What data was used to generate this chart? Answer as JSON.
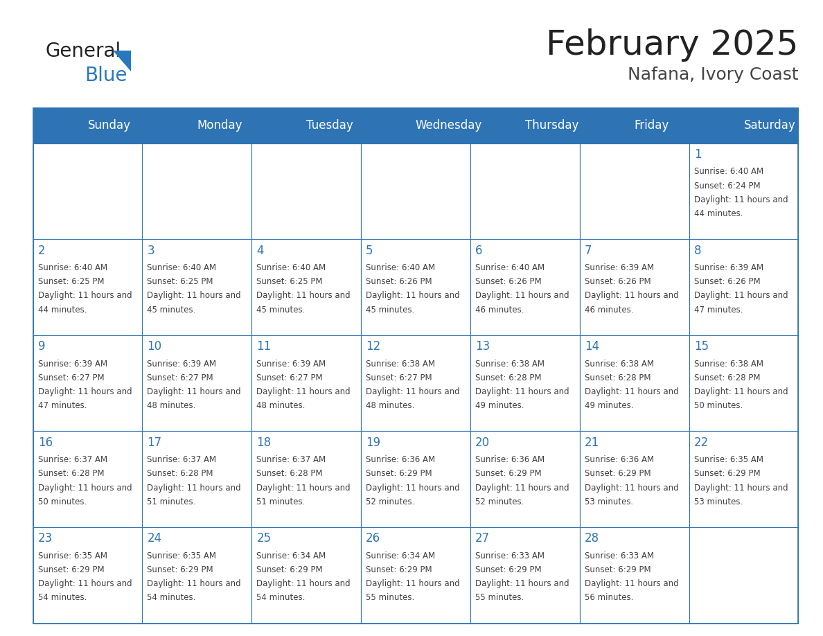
{
  "title": "February 2025",
  "subtitle": "Nafana, Ivory Coast",
  "header_bg": "#2E74B5",
  "header_text_color": "#FFFFFF",
  "days_of_week": [
    "Sunday",
    "Monday",
    "Tuesday",
    "Wednesday",
    "Thursday",
    "Friday",
    "Saturday"
  ],
  "cell_border_color": "#2E74B5",
  "cell_bg": "#FFFFFF",
  "day_number_color": "#2E74B5",
  "info_text_color": "#404040",
  "title_color": "#222222",
  "subtitle_color": "#444444",
  "general_text_color": "#333333",
  "logo_general_color": "#222222",
  "logo_blue_color": "#2878BE",
  "calendar_data": [
    {
      "day": 1,
      "col": 6,
      "row": 0,
      "sunrise": "6:40 AM",
      "sunset": "6:24 PM",
      "daylight": "11 hours and 44 minutes."
    },
    {
      "day": 2,
      "col": 0,
      "row": 1,
      "sunrise": "6:40 AM",
      "sunset": "6:25 PM",
      "daylight": "11 hours and 44 minutes."
    },
    {
      "day": 3,
      "col": 1,
      "row": 1,
      "sunrise": "6:40 AM",
      "sunset": "6:25 PM",
      "daylight": "11 hours and 45 minutes."
    },
    {
      "day": 4,
      "col": 2,
      "row": 1,
      "sunrise": "6:40 AM",
      "sunset": "6:25 PM",
      "daylight": "11 hours and 45 minutes."
    },
    {
      "day": 5,
      "col": 3,
      "row": 1,
      "sunrise": "6:40 AM",
      "sunset": "6:26 PM",
      "daylight": "11 hours and 45 minutes."
    },
    {
      "day": 6,
      "col": 4,
      "row": 1,
      "sunrise": "6:40 AM",
      "sunset": "6:26 PM",
      "daylight": "11 hours and 46 minutes."
    },
    {
      "day": 7,
      "col": 5,
      "row": 1,
      "sunrise": "6:39 AM",
      "sunset": "6:26 PM",
      "daylight": "11 hours and 46 minutes."
    },
    {
      "day": 8,
      "col": 6,
      "row": 1,
      "sunrise": "6:39 AM",
      "sunset": "6:26 PM",
      "daylight": "11 hours and 47 minutes."
    },
    {
      "day": 9,
      "col": 0,
      "row": 2,
      "sunrise": "6:39 AM",
      "sunset": "6:27 PM",
      "daylight": "11 hours and 47 minutes."
    },
    {
      "day": 10,
      "col": 1,
      "row": 2,
      "sunrise": "6:39 AM",
      "sunset": "6:27 PM",
      "daylight": "11 hours and 48 minutes."
    },
    {
      "day": 11,
      "col": 2,
      "row": 2,
      "sunrise": "6:39 AM",
      "sunset": "6:27 PM",
      "daylight": "11 hours and 48 minutes."
    },
    {
      "day": 12,
      "col": 3,
      "row": 2,
      "sunrise": "6:38 AM",
      "sunset": "6:27 PM",
      "daylight": "11 hours and 48 minutes."
    },
    {
      "day": 13,
      "col": 4,
      "row": 2,
      "sunrise": "6:38 AM",
      "sunset": "6:28 PM",
      "daylight": "11 hours and 49 minutes."
    },
    {
      "day": 14,
      "col": 5,
      "row": 2,
      "sunrise": "6:38 AM",
      "sunset": "6:28 PM",
      "daylight": "11 hours and 49 minutes."
    },
    {
      "day": 15,
      "col": 6,
      "row": 2,
      "sunrise": "6:38 AM",
      "sunset": "6:28 PM",
      "daylight": "11 hours and 50 minutes."
    },
    {
      "day": 16,
      "col": 0,
      "row": 3,
      "sunrise": "6:37 AM",
      "sunset": "6:28 PM",
      "daylight": "11 hours and 50 minutes."
    },
    {
      "day": 17,
      "col": 1,
      "row": 3,
      "sunrise": "6:37 AM",
      "sunset": "6:28 PM",
      "daylight": "11 hours and 51 minutes."
    },
    {
      "day": 18,
      "col": 2,
      "row": 3,
      "sunrise": "6:37 AM",
      "sunset": "6:28 PM",
      "daylight": "11 hours and 51 minutes."
    },
    {
      "day": 19,
      "col": 3,
      "row": 3,
      "sunrise": "6:36 AM",
      "sunset": "6:29 PM",
      "daylight": "11 hours and 52 minutes."
    },
    {
      "day": 20,
      "col": 4,
      "row": 3,
      "sunrise": "6:36 AM",
      "sunset": "6:29 PM",
      "daylight": "11 hours and 52 minutes."
    },
    {
      "day": 21,
      "col": 5,
      "row": 3,
      "sunrise": "6:36 AM",
      "sunset": "6:29 PM",
      "daylight": "11 hours and 53 minutes."
    },
    {
      "day": 22,
      "col": 6,
      "row": 3,
      "sunrise": "6:35 AM",
      "sunset": "6:29 PM",
      "daylight": "11 hours and 53 minutes."
    },
    {
      "day": 23,
      "col": 0,
      "row": 4,
      "sunrise": "6:35 AM",
      "sunset": "6:29 PM",
      "daylight": "11 hours and 54 minutes."
    },
    {
      "day": 24,
      "col": 1,
      "row": 4,
      "sunrise": "6:35 AM",
      "sunset": "6:29 PM",
      "daylight": "11 hours and 54 minutes."
    },
    {
      "day": 25,
      "col": 2,
      "row": 4,
      "sunrise": "6:34 AM",
      "sunset": "6:29 PM",
      "daylight": "11 hours and 54 minutes."
    },
    {
      "day": 26,
      "col": 3,
      "row": 4,
      "sunrise": "6:34 AM",
      "sunset": "6:29 PM",
      "daylight": "11 hours and 55 minutes."
    },
    {
      "day": 27,
      "col": 4,
      "row": 4,
      "sunrise": "6:33 AM",
      "sunset": "6:29 PM",
      "daylight": "11 hours and 55 minutes."
    },
    {
      "day": 28,
      "col": 5,
      "row": 4,
      "sunrise": "6:33 AM",
      "sunset": "6:29 PM",
      "daylight": "11 hours and 56 minutes."
    }
  ]
}
